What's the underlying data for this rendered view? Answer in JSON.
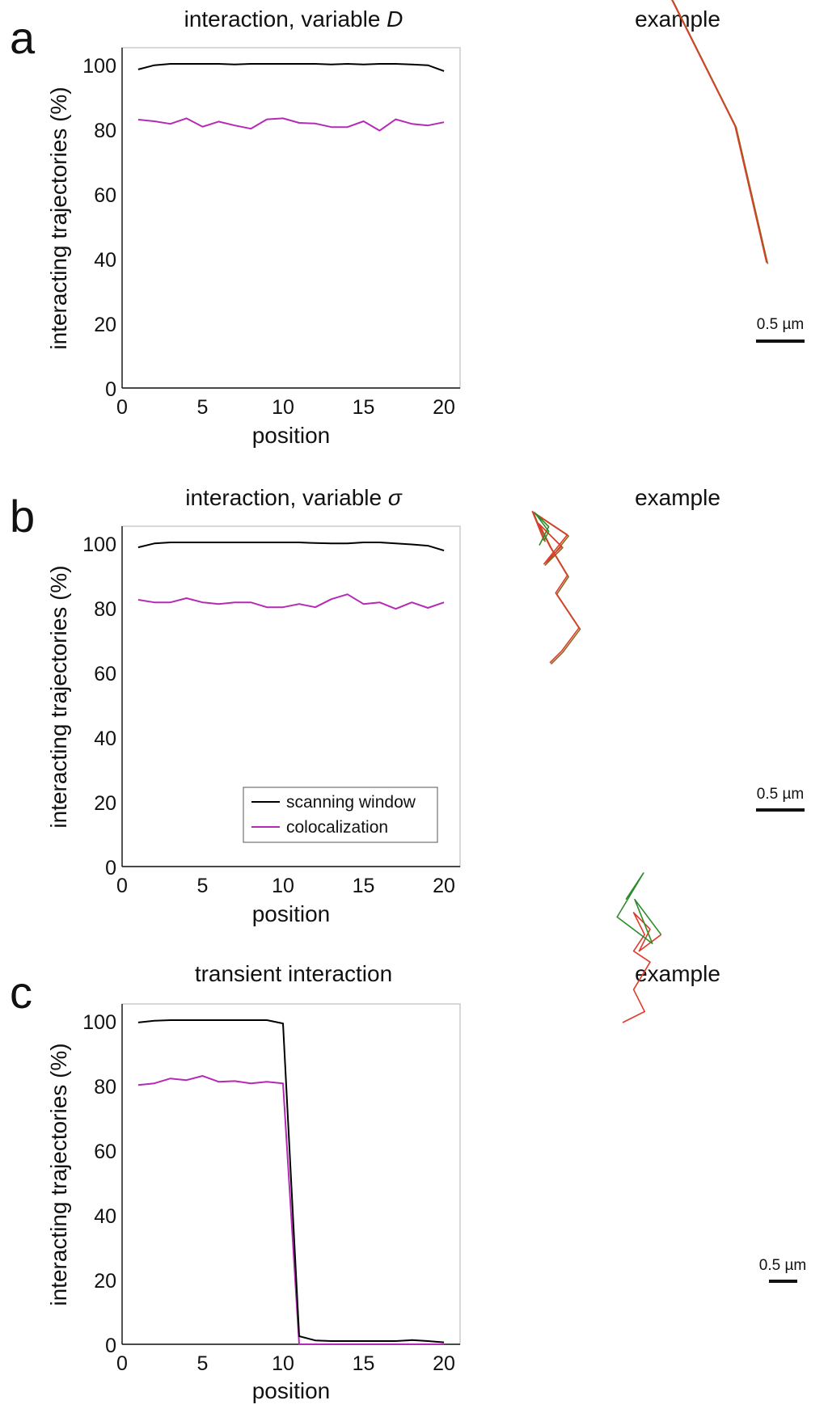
{
  "chart_data": [
    {
      "panel_letter": "a",
      "type": "line",
      "title": "interaction, variable D",
      "title_prefix": "interaction, variable ",
      "title_symbol": "D",
      "xlabel": "position",
      "ylabel": "interacting trajectories (%)",
      "xlim": [
        0,
        21
      ],
      "ylim": [
        0,
        105
      ],
      "xticks": [
        "0",
        "5",
        "10",
        "15",
        "20"
      ],
      "yticks": [
        "0",
        "20",
        "40",
        "60",
        "80",
        "100"
      ],
      "grid": false,
      "legend": null,
      "x": [
        1,
        2,
        3,
        4,
        5,
        6,
        7,
        8,
        9,
        10,
        11,
        12,
        13,
        14,
        15,
        16,
        17,
        18,
        19,
        20
      ],
      "series": [
        {
          "name": "scanning window",
          "color": "#000000",
          "values": [
            98.3,
            99.6,
            100,
            100,
            100,
            100,
            99.8,
            100,
            100,
            100,
            100,
            100,
            99.8,
            100,
            99.8,
            100,
            100,
            99.8,
            99.6,
            97.8
          ]
        },
        {
          "name": "colocalization",
          "color": "#b52ab5",
          "values": [
            82.8,
            82.3,
            81.5,
            83.2,
            80.6,
            82.2,
            81.0,
            80.0,
            82.9,
            83.2,
            81.8,
            81.6,
            80.5,
            80.5,
            82.3,
            79.4,
            82.9,
            81.5,
            81.0,
            82.0
          ]
        }
      ],
      "example_title": "example",
      "scale_label": "0.5 µm"
    },
    {
      "panel_letter": "b",
      "type": "line",
      "title": "interaction, variable σ",
      "title_prefix": "interaction, variable ",
      "title_symbol": "σ",
      "xlabel": "position",
      "ylabel": "interacting trajectories (%)",
      "xlim": [
        0,
        21
      ],
      "ylim": [
        0,
        105
      ],
      "xticks": [
        "0",
        "5",
        "10",
        "15",
        "20"
      ],
      "yticks": [
        "0",
        "20",
        "40",
        "60",
        "80",
        "100"
      ],
      "grid": false,
      "legend": "bottom-right",
      "x": [
        1,
        2,
        3,
        4,
        5,
        6,
        7,
        8,
        9,
        10,
        11,
        12,
        13,
        14,
        15,
        16,
        17,
        18,
        19,
        20
      ],
      "series": [
        {
          "name": "scanning window",
          "color": "#000000",
          "values": [
            98.5,
            99.7,
            100,
            100,
            100,
            100,
            100,
            100,
            100,
            100,
            100,
            99.8,
            99.7,
            99.7,
            100,
            100,
            99.7,
            99.4,
            99.0,
            97.5
          ]
        },
        {
          "name": "colocalization",
          "color": "#b52ab5",
          "values": [
            82.3,
            81.5,
            81.5,
            82.8,
            81.5,
            81.0,
            81.5,
            81.5,
            80.0,
            80.0,
            81.0,
            80.0,
            82.5,
            84.0,
            81.0,
            81.5,
            79.5,
            81.5,
            79.8,
            81.5
          ]
        }
      ],
      "example_title": "example",
      "scale_label": "0.5 µm"
    },
    {
      "panel_letter": "c",
      "type": "line",
      "title": "transient interaction",
      "title_prefix": "transient interaction",
      "title_symbol": "",
      "xlabel": "position",
      "ylabel": "interacting trajectories (%)",
      "xlim": [
        0,
        21
      ],
      "ylim": [
        0,
        105
      ],
      "xticks": [
        "0",
        "5",
        "10",
        "15",
        "20"
      ],
      "yticks": [
        "0",
        "20",
        "40",
        "60",
        "80",
        "100"
      ],
      "grid": false,
      "legend": null,
      "x": [
        1,
        2,
        3,
        4,
        5,
        6,
        7,
        8,
        9,
        10,
        11,
        12,
        13,
        14,
        15,
        16,
        17,
        18,
        19,
        20
      ],
      "series": [
        {
          "name": "scanning window",
          "color": "#000000",
          "values": [
            99.3,
            99.8,
            100,
            100,
            100,
            100,
            100,
            100,
            100,
            99.0,
            2.5,
            1.2,
            1.0,
            1.0,
            1.0,
            1.0,
            1.0,
            1.3,
            1.0,
            0.6
          ]
        },
        {
          "name": "colocalization",
          "color": "#b52ab5",
          "values": [
            80.0,
            80.5,
            82.0,
            81.5,
            82.8,
            81.0,
            81.2,
            80.5,
            81.0,
            80.5,
            0,
            0,
            0,
            0,
            0,
            0,
            0,
            0,
            0,
            0
          ]
        }
      ],
      "example_title": "example",
      "scale_label": "0.5 µm"
    }
  ],
  "colors": {
    "axis": "#111111",
    "frame": "#bfbfbf",
    "red_trace": "#e03a2a",
    "green_trace": "#2c8c2c",
    "olive_trace": "#8a6a22"
  },
  "examples": [
    {
      "overlay": true,
      "red": [
        [
          -6,
          26
        ],
        [
          -3,
          6
        ],
        [
          -2,
          4
        ],
        [
          -4,
          8
        ],
        [
          -3,
          6
        ],
        [
          -4,
          4
        ],
        [
          -6,
          12
        ],
        [
          -4,
          6
        ],
        [
          -2,
          4
        ],
        [
          -5,
          4
        ],
        [
          -4,
          2
        ],
        [
          -3,
          4
        ],
        [
          -2,
          2
        ],
        [
          0,
          0
        ]
      ],
      "green": [
        [
          -2,
          4
        ],
        [
          -4,
          6
        ],
        [
          -3,
          4
        ]
      ]
    },
    {
      "overlay": true,
      "red": [
        [
          2,
          2
        ],
        [
          3,
          4
        ],
        [
          -4,
          6
        ],
        [
          2,
          3
        ],
        [
          -3,
          5
        ],
        [
          -2,
          4
        ],
        [
          4,
          -4
        ],
        [
          -3,
          -3
        ],
        [
          4,
          5
        ],
        [
          -6,
          4
        ],
        [
          2,
          -5
        ]
      ],
      "green": [
        [
          1,
          2
        ],
        [
          -3,
          4
        ],
        [
          3,
          -3
        ],
        [
          -2,
          -4
        ]
      ]
    },
    {
      "overlay": false,
      "red": [
        [
          4,
          2
        ],
        [
          -2,
          4
        ],
        [
          3,
          5
        ],
        [
          -3,
          2
        ],
        [
          2,
          3
        ],
        [
          -2,
          4
        ],
        [
          3,
          -3
        ],
        [
          -2,
          -4
        ],
        [
          4,
          3
        ]
      ],
      "green": [
        [
          -3,
          4
        ],
        [
          2,
          -5
        ],
        [
          -4,
          3
        ],
        [
          3,
          5
        ],
        [
          -2,
          -3
        ]
      ]
    }
  ]
}
